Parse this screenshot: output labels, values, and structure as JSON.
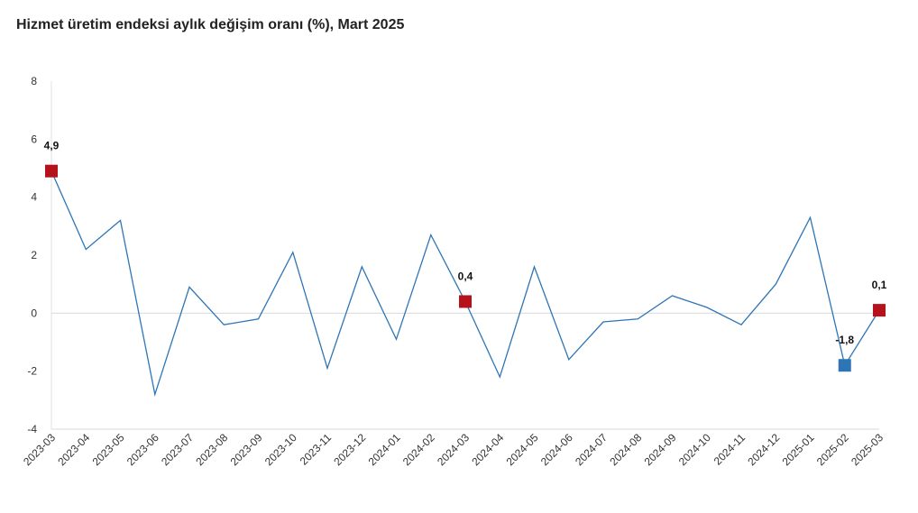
{
  "chart_data": {
    "type": "line",
    "title": "Hizmet üretim endeksi aylık değişim oranı (%), Mart 2025",
    "xlabel": "",
    "ylabel": "",
    "ylim": [
      -4,
      8
    ],
    "yticks": [
      "8",
      "6",
      "4",
      "2",
      "0",
      "-2",
      "-4"
    ],
    "grid": "zero-line only",
    "legend": "none",
    "categories": [
      "2023-03",
      "2023-04",
      "2023-05",
      "2023-06",
      "2023-07",
      "2023-08",
      "2023-09",
      "2023-10",
      "2023-11",
      "2023-12",
      "2024-01",
      "2024-02",
      "2024-03",
      "2024-04",
      "2024-05",
      "2024-06",
      "2024-07",
      "2024-08",
      "2024-09",
      "2024-10",
      "2024-11",
      "2024-12",
      "2025-01",
      "2025-02",
      "2025-03"
    ],
    "series": [
      {
        "values": [
          4.9,
          2.2,
          3.2,
          -2.8,
          0.9,
          -0.4,
          -0.2,
          2.1,
          -1.9,
          1.6,
          -0.9,
          2.7,
          0.4,
          -2.2,
          1.6,
          -1.6,
          -0.3,
          -0.2,
          0.6,
          0.2,
          -0.4,
          1.0,
          3.3,
          -1.8,
          0.1
        ]
      }
    ],
    "highlighted_points": [
      {
        "category": "2023-03",
        "value": 4.9,
        "label": "4,9",
        "color": "#b5121b"
      },
      {
        "category": "2024-03",
        "value": 0.4,
        "label": "0,4",
        "color": "#b5121b"
      },
      {
        "category": "2025-02",
        "value": -1.8,
        "label": "-1,8",
        "color": "#2e75b6"
      },
      {
        "category": "2025-03",
        "value": 0.1,
        "label": "0,1",
        "color": "#b5121b"
      }
    ],
    "line_color": "#2e75b6"
  }
}
